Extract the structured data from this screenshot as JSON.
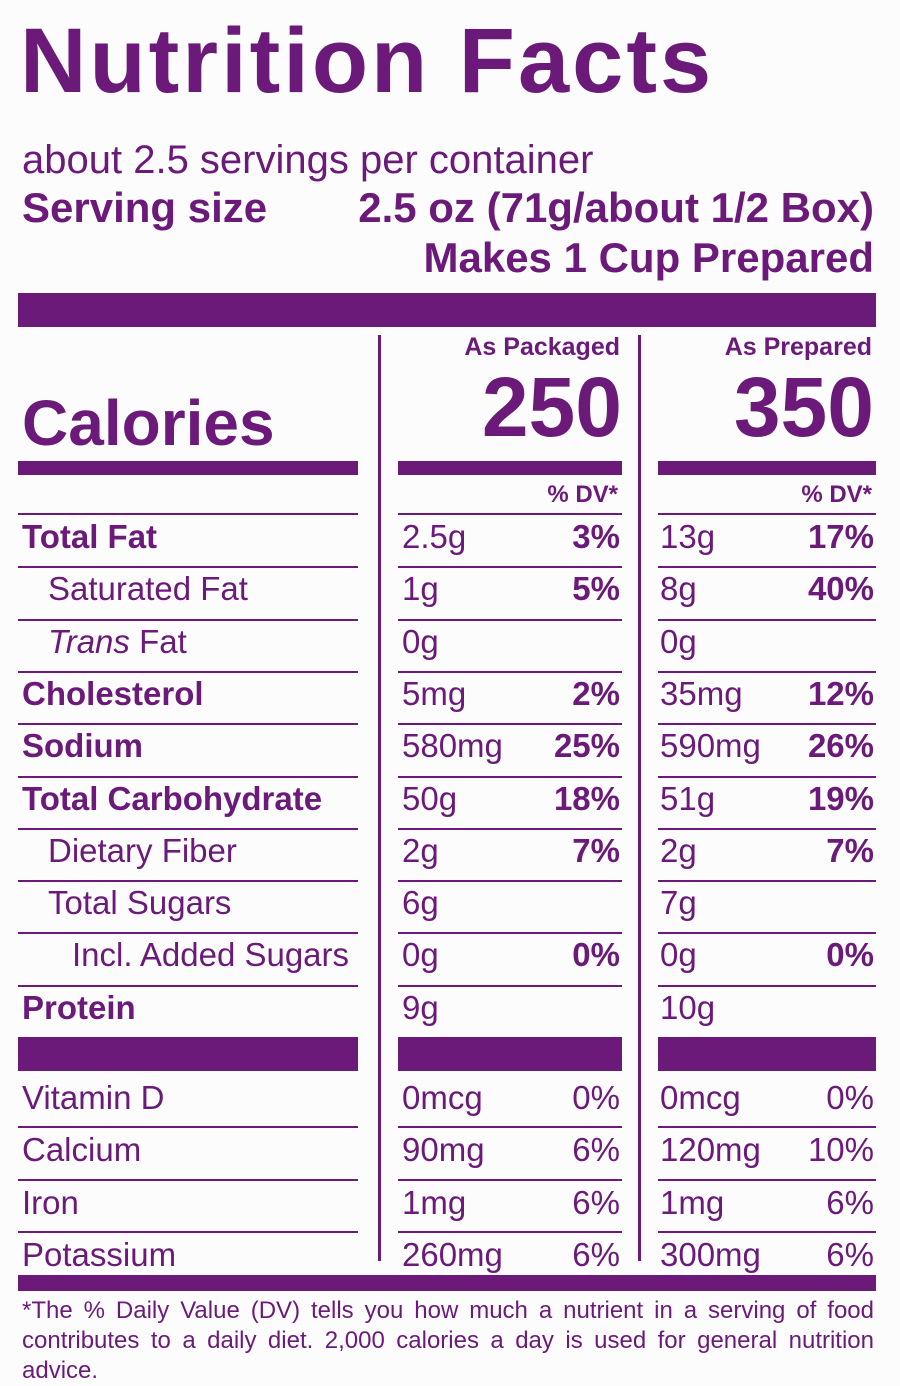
{
  "title": "Nutrition Facts",
  "servings_per_container": "about 2.5 servings per container",
  "serving_size_label": "Serving size",
  "serving_size_value": "2.5 oz (71g/about 1/2 Box)",
  "makes": "Makes 1 Cup Prepared",
  "columns": [
    {
      "heading": "As Packaged",
      "calories": "250",
      "dv_heading": "% DV*"
    },
    {
      "heading": "As Prepared",
      "calories": "350",
      "dv_heading": "% DV*"
    }
  ],
  "calories_label": "Calories",
  "nutrients": [
    {
      "label": "Total Fat",
      "bold": true,
      "indent": 0,
      "packaged": {
        "amount": "2.5g",
        "dv": "3%"
      },
      "prepared": {
        "amount": "13g",
        "dv": "17%"
      }
    },
    {
      "label": "Saturated Fat",
      "bold": false,
      "indent": 1,
      "packaged": {
        "amount": "1g",
        "dv": "5%"
      },
      "prepared": {
        "amount": "8g",
        "dv": "40%"
      }
    },
    {
      "label": "Fat",
      "label_italic_prefix": "Trans",
      "bold": false,
      "indent": 1,
      "packaged": {
        "amount": "0g",
        "dv": ""
      },
      "prepared": {
        "amount": "0g",
        "dv": ""
      }
    },
    {
      "label": "Cholesterol",
      "bold": true,
      "indent": 0,
      "packaged": {
        "amount": "5mg",
        "dv": "2%"
      },
      "prepared": {
        "amount": "35mg",
        "dv": "12%"
      }
    },
    {
      "label": "Sodium",
      "bold": true,
      "indent": 0,
      "packaged": {
        "amount": "580mg",
        "dv": "25%"
      },
      "prepared": {
        "amount": "590mg",
        "dv": "26%"
      }
    },
    {
      "label": "Total Carbohydrate",
      "bold": true,
      "indent": 0,
      "packaged": {
        "amount": "50g",
        "dv": "18%"
      },
      "prepared": {
        "amount": "51g",
        "dv": "19%"
      }
    },
    {
      "label": "Dietary Fiber",
      "bold": false,
      "indent": 1,
      "packaged": {
        "amount": "2g",
        "dv": "7%"
      },
      "prepared": {
        "amount": "2g",
        "dv": "7%"
      }
    },
    {
      "label": "Total Sugars",
      "bold": false,
      "indent": 1,
      "packaged": {
        "amount": "6g",
        "dv": ""
      },
      "prepared": {
        "amount": "7g",
        "dv": ""
      }
    },
    {
      "label": "Incl. Added Sugars",
      "bold": false,
      "indent": 2,
      "packaged": {
        "amount": "0g",
        "dv": "0%"
      },
      "prepared": {
        "amount": "0g",
        "dv": "0%"
      }
    },
    {
      "label": "Protein",
      "bold": true,
      "indent": 0,
      "packaged": {
        "amount": "9g",
        "dv": ""
      },
      "prepared": {
        "amount": "10g",
        "dv": ""
      }
    }
  ],
  "vitamins": [
    {
      "label": "Vitamin D",
      "packaged": {
        "amount": "0mcg",
        "dv": "0%"
      },
      "prepared": {
        "amount": "0mcg",
        "dv": "0%"
      }
    },
    {
      "label": "Calcium",
      "packaged": {
        "amount": "90mg",
        "dv": "6%"
      },
      "prepared": {
        "amount": "120mg",
        "dv": "10%"
      }
    },
    {
      "label": "Iron",
      "packaged": {
        "amount": "1mg",
        "dv": "6%"
      },
      "prepared": {
        "amount": "1mg",
        "dv": "6%"
      }
    },
    {
      "label": "Potassium",
      "packaged": {
        "amount": "260mg",
        "dv": "6%"
      },
      "prepared": {
        "amount": "300mg",
        "dv": "6%"
      }
    }
  ],
  "footnote": "*The % Daily Value (DV) tells you how much a nutrient in a serving of food contributes to a daily diet. 2,000 calories a day is used for general nutrition advice.",
  "colors": {
    "ink": "#6b1a7a",
    "background": "#fdfcfd"
  }
}
